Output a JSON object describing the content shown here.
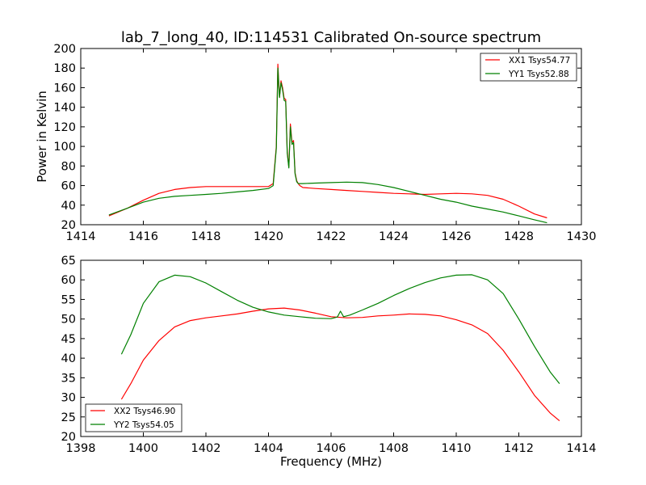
{
  "title": "lab_7_long_40, ID:114531 Calibrated On-source spectrum",
  "chart_data": [
    {
      "type": "line",
      "ylabel": "Power in Kelvin",
      "xlabel": "",
      "xlim": [
        1414,
        1430
      ],
      "ylim": [
        20,
        200
      ],
      "xticks": [
        "1414",
        "1416",
        "1418",
        "1420",
        "1422",
        "1424",
        "1426",
        "1428",
        "1430"
      ],
      "yticks": [
        "20",
        "40",
        "60",
        "80",
        "100",
        "120",
        "140",
        "160",
        "180",
        "200"
      ],
      "legend_position": "top-right",
      "series": [
        {
          "name": "XX1 Tsys54.77",
          "color": "#ff0000",
          "x": [
            1414.9,
            1415.5,
            1416.0,
            1416.5,
            1417.0,
            1417.5,
            1418.0,
            1418.5,
            1419.0,
            1419.5,
            1420.0,
            1420.15,
            1420.25,
            1420.3,
            1420.35,
            1420.4,
            1420.45,
            1420.5,
            1420.55,
            1420.6,
            1420.65,
            1420.7,
            1420.75,
            1420.8,
            1420.85,
            1420.9,
            1420.95,
            1421.0,
            1421.1,
            1421.5,
            1422.0,
            1422.5,
            1423.0,
            1423.5,
            1424.0,
            1424.5,
            1425.0,
            1425.5,
            1426.0,
            1426.5,
            1427.0,
            1427.5,
            1428.0,
            1428.5,
            1428.9
          ],
          "values": [
            29,
            37,
            45,
            52,
            56,
            58,
            59,
            59,
            59,
            59,
            59,
            62,
            100,
            184,
            150,
            167,
            160,
            149,
            148,
            95,
            79,
            123,
            104,
            106,
            73,
            65,
            62,
            60,
            58,
            57,
            56,
            55,
            54,
            53,
            52,
            51.5,
            51,
            51.5,
            52,
            51.5,
            50,
            46,
            39,
            31,
            27
          ]
        },
        {
          "name": "YY1 Tsys52.88",
          "color": "#008000",
          "x": [
            1414.9,
            1415.5,
            1416.0,
            1416.5,
            1417.0,
            1417.5,
            1418.0,
            1418.5,
            1419.0,
            1419.5,
            1420.0,
            1420.15,
            1420.25,
            1420.3,
            1420.35,
            1420.4,
            1420.45,
            1420.5,
            1420.55,
            1420.6,
            1420.65,
            1420.7,
            1420.75,
            1420.8,
            1420.85,
            1420.9,
            1420.95,
            1421.0,
            1421.1,
            1421.5,
            1422.0,
            1422.5,
            1423.0,
            1423.5,
            1424.0,
            1424.5,
            1425.0,
            1425.5,
            1426.0,
            1426.5,
            1427.0,
            1427.5,
            1428.0,
            1428.5,
            1428.9
          ],
          "values": [
            30,
            37,
            43,
            47,
            49,
            50,
            51,
            52,
            53.5,
            55,
            57,
            60,
            98,
            180,
            150,
            165,
            158,
            147,
            146,
            93,
            78,
            120,
            102,
            104,
            72,
            64,
            62,
            62,
            62,
            62.5,
            63,
            63.5,
            63,
            61,
            58,
            54,
            50,
            46,
            43,
            39,
            36,
            33,
            29,
            25,
            22
          ]
        }
      ]
    },
    {
      "type": "line",
      "ylabel": "",
      "xlabel": "Frequency (MHz)",
      "xlim": [
        1398,
        1414
      ],
      "ylim": [
        20,
        65
      ],
      "xticks": [
        "1398",
        "1400",
        "1402",
        "1404",
        "1406",
        "1408",
        "1410",
        "1412",
        "1414"
      ],
      "yticks": [
        "20",
        "25",
        "30",
        "35",
        "40",
        "45",
        "50",
        "55",
        "60",
        "65"
      ],
      "legend_position": "bottom-left",
      "series": [
        {
          "name": "XX2 Tsys46.90",
          "color": "#ff0000",
          "x": [
            1399.3,
            1399.6,
            1400.0,
            1400.5,
            1401.0,
            1401.5,
            1402.0,
            1402.5,
            1403.0,
            1403.5,
            1404.0,
            1404.5,
            1405.0,
            1405.5,
            1406.0,
            1406.5,
            1407.0,
            1407.5,
            1408.0,
            1408.5,
            1409.0,
            1409.5,
            1410.0,
            1410.5,
            1411.0,
            1411.5,
            1412.0,
            1412.5,
            1413.0,
            1413.3
          ],
          "values": [
            29.5,
            33.5,
            39.5,
            44.5,
            48,
            49.6,
            50.3,
            50.8,
            51.3,
            52,
            52.6,
            52.8,
            52.3,
            51.5,
            50.6,
            50.3,
            50.4,
            50.8,
            51,
            51.3,
            51.2,
            50.8,
            49.8,
            48.5,
            46.3,
            42,
            36.5,
            30.5,
            26,
            24
          ]
        },
        {
          "name": "YY2 Tsys54.05",
          "color": "#008000",
          "x": [
            1399.3,
            1399.6,
            1400.0,
            1400.5,
            1401.0,
            1401.5,
            1402.0,
            1402.5,
            1403.0,
            1403.5,
            1404.0,
            1404.5,
            1405.0,
            1405.5,
            1406.0,
            1406.2,
            1406.3,
            1406.4,
            1406.6,
            1407.0,
            1407.5,
            1408.0,
            1408.5,
            1409.0,
            1409.5,
            1410.0,
            1410.5,
            1411.0,
            1411.5,
            1412.0,
            1412.5,
            1413.0,
            1413.3
          ],
          "values": [
            41,
            46,
            54,
            59.5,
            61.2,
            60.8,
            59.2,
            57,
            54.8,
            53,
            51.8,
            51,
            50.6,
            50.2,
            50.1,
            50.5,
            52,
            50.6,
            51,
            52.3,
            54,
            56,
            57.8,
            59.3,
            60.5,
            61.2,
            61.3,
            60,
            56.5,
            50,
            43,
            36.5,
            33.5
          ]
        }
      ]
    }
  ]
}
